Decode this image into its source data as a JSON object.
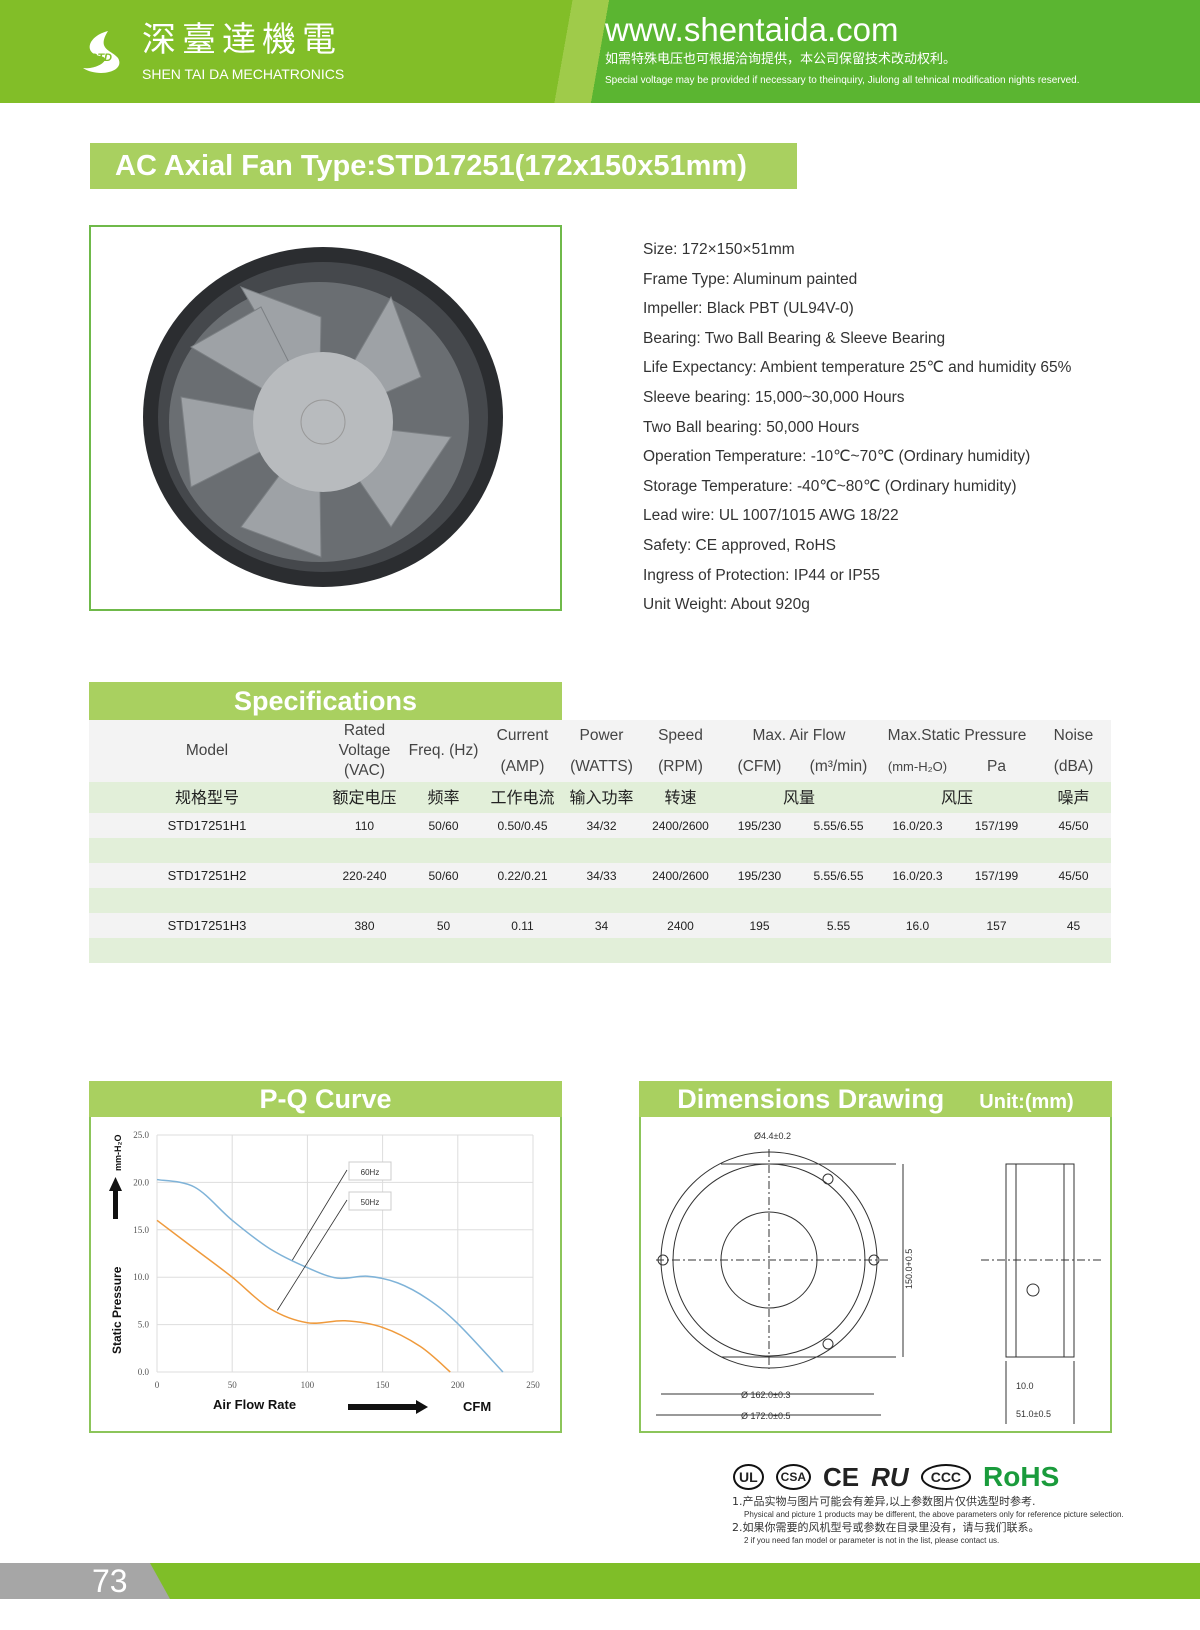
{
  "header": {
    "brand_cn": "深臺達機電",
    "brand_en": "SHEN TAI DA MECHATRONICS",
    "logo_text": "STD",
    "url": "www.shentaida.com",
    "note_cn": "如需特殊电压也可根据洽询提供，本公司保留技术改动权利。",
    "note_en": "Special voltage may be provided if necessary to theinquiry, Jiulong all tehnical modification nights reserved."
  },
  "title": "AC Axial Fan  Type:STD17251(172x150x51mm)",
  "specs": [
    "Size: 172×150×51mm",
    "Frame Type: Aluminum painted",
    "Impeller: Black PBT (UL94V-0)",
    "Bearing: Two Ball Bearing & Sleeve Bearing",
    "Life Expectancy: Ambient temperature 25℃ and humidity 65%",
    "Sleeve bearing: 15,000~30,000 Hours",
    "Two Ball bearing: 50,000 Hours",
    "Operation Temperature: -10℃~70℃ (Ordinary humidity)",
    "Storage Temperature: -40℃~80℃ (Ordinary humidity)",
    "Lead wire: UL 1007/1015 AWG 18/22",
    "Safety: CE approved, RoHS",
    "Ingress of Protection: IP44 or IP55",
    "Unit Weight: About 920g"
  ],
  "table": {
    "title": "Specifications",
    "headers": {
      "model": "Model",
      "voltage": "Rated Voltage (VAC)",
      "freq": "Freq. (Hz)",
      "current": [
        "Current",
        "(AMP)"
      ],
      "power": [
        "Power",
        "(WATTS)"
      ],
      "speed": [
        "Speed",
        "(RPM)"
      ],
      "airflow": "Max. Air Flow",
      "cfm": "(CFM)",
      "m3": "(m³/min)",
      "pressure": "Max.Static Pressure",
      "mmh2o": "(mm-H₂O)",
      "pa": "Pa",
      "noise": [
        "Noise",
        "(dBA)"
      ]
    },
    "cn": [
      "规格型号",
      "额定电压",
      "频率",
      "工作电流",
      "输入功率",
      "转速",
      "风量",
      "风压",
      "噪声"
    ],
    "rows": [
      [
        "STD17251H1",
        "110",
        "50/60",
        "0.50/0.45",
        "34/32",
        "2400/2600",
        "195/230",
        "5.55/6.55",
        "16.0/20.3",
        "157/199",
        "45/50"
      ],
      [
        "STD17251H2",
        "220-240",
        "50/60",
        "0.22/0.21",
        "34/33",
        "2400/2600",
        "195/230",
        "5.55/6.55",
        "16.0/20.3",
        "157/199",
        "45/50"
      ],
      [
        "STD17251H3",
        "380",
        "50",
        "0.11",
        "34",
        "2400",
        "195",
        "5.55",
        "16.0",
        "157",
        "45"
      ]
    ]
  },
  "pq": {
    "title": "P-Q Curve"
  },
  "chart_data": {
    "type": "line",
    "title": "P-Q Curve",
    "xlabel": "Air   Flow  Rate",
    "xunit": "CFM",
    "ylabel": "Static   Pressure",
    "yunit": "mm-H₂O",
    "xlim": [
      0,
      250
    ],
    "ylim": [
      0,
      25
    ],
    "xticks": [
      "0",
      "50",
      "100",
      "150",
      "200",
      "250"
    ],
    "yticks": [
      "0.0",
      "5.0",
      "10.0",
      "15.0",
      "20.0",
      "25.0"
    ],
    "grid": true,
    "series": [
      {
        "name": "60Hz",
        "color": "#7fb3d8",
        "x": [
          0,
          25,
          50,
          75,
          100,
          120,
          140,
          160,
          180,
          200,
          230
        ],
        "y": [
          20.3,
          19.5,
          16,
          13,
          11,
          9.9,
          10.1,
          9.4,
          7.7,
          5.1,
          0
        ]
      },
      {
        "name": "50Hz",
        "color": "#ef9a3c",
        "x": [
          0,
          25,
          50,
          75,
          100,
          125,
          150,
          175,
          195
        ],
        "y": [
          16,
          13,
          10,
          6.7,
          5.2,
          5.4,
          4.7,
          2.7,
          0
        ]
      }
    ]
  },
  "dims": {
    "title": "Dimensions Drawing",
    "unit": "Unit:(mm)",
    "hole": "Ø4.4±0.2",
    "d1": "Ø 162.0±0.3",
    "d2": "Ø 172.0±0.5",
    "h": "150.0+0.5",
    "t1": "10.0",
    "t2": "51.0±0.5"
  },
  "certs": [
    "UL",
    "CSA",
    "CE",
    "RU",
    "CCC",
    "RoHS"
  ],
  "notes": [
    {
      "cn": "1.产品实物与图片可能会有差异,以上参数图片仅供选型时参考.",
      "en": "Physical and picture 1 products may be different, the above parameters only for reference picture selection."
    },
    {
      "cn": "2.如果你需要的风机型号或参数在目录里没有，请与我们联系。",
      "en": "2 if you need fan model or parameter is not in the list, please contact us."
    }
  ],
  "page_number": "73",
  "colors": {
    "green": "#82be28",
    "light_green": "#a9d060",
    "rohs": "#1a9b3c"
  }
}
